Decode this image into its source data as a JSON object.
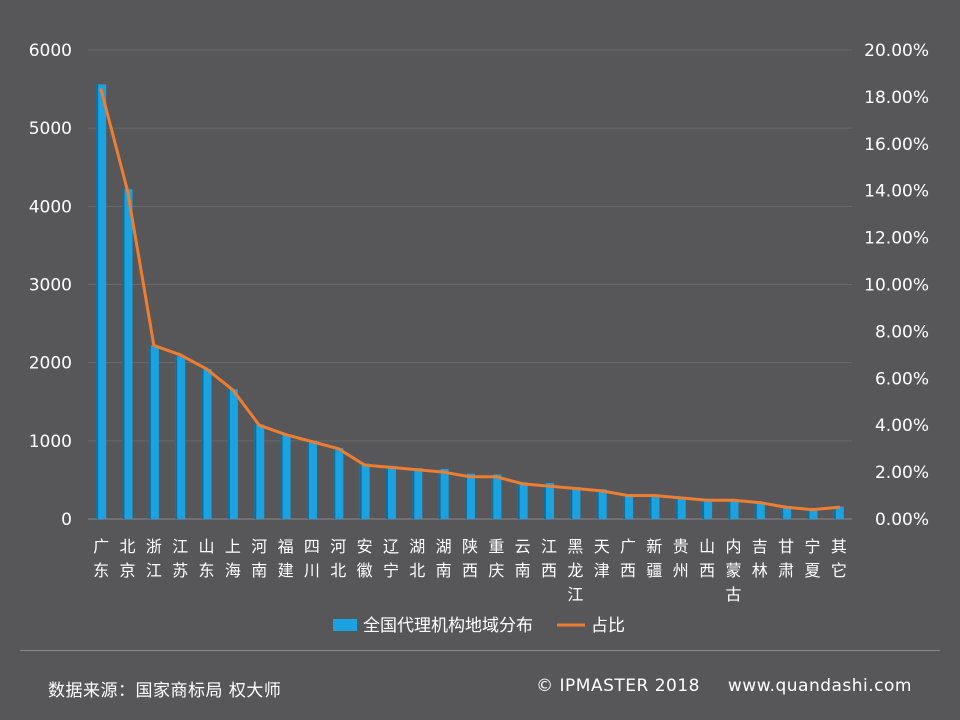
{
  "chart_data": {
    "type": "bar",
    "categories": [
      "广东",
      "北京",
      "浙江",
      "江苏",
      "山东",
      "上海",
      "河南",
      "福建",
      "四川",
      "河北",
      "安徽",
      "辽宁",
      "湖北",
      "湖南",
      "陕西",
      "重庆",
      "云南",
      "江西",
      "黑龙江",
      "天津",
      "广西",
      "新疆",
      "贵州",
      "山西",
      "内蒙古",
      "吉林",
      "甘肃",
      "宁夏",
      "其它"
    ],
    "series": [
      {
        "name": "全国代理机构地域分布",
        "kind": "bar",
        "axis": "left",
        "color": "#1aa3e0",
        "values": [
          5560,
          4220,
          2220,
          2080,
          1920,
          1660,
          1210,
          1080,
          1000,
          910,
          710,
          680,
          650,
          640,
          580,
          570,
          470,
          460,
          410,
          380,
          310,
          300,
          270,
          260,
          240,
          210,
          150,
          110,
          160
        ]
      },
      {
        "name": "占比",
        "kind": "line",
        "axis": "right",
        "color": "#ed7d31",
        "values": [
          18.3,
          14.0,
          7.4,
          7.0,
          6.4,
          5.5,
          4.0,
          3.6,
          3.3,
          3.0,
          2.3,
          2.2,
          2.1,
          2.0,
          1.8,
          1.8,
          1.5,
          1.4,
          1.3,
          1.2,
          1.0,
          1.0,
          0.9,
          0.8,
          0.8,
          0.7,
          0.5,
          0.4,
          0.5
        ]
      }
    ],
    "yaxis_left": {
      "min": 0,
      "max": 6000,
      "ticks": [
        "0",
        "1000",
        "2000",
        "3000",
        "4000",
        "5000",
        "6000"
      ]
    },
    "yaxis_right": {
      "min": 0,
      "max": 20,
      "ticks": [
        "0.00%",
        "2.00%",
        "4.00%",
        "6.00%",
        "8.00%",
        "10.00%",
        "12.00%",
        "14.00%",
        "16.00%",
        "18.00%",
        "20.00%"
      ]
    },
    "grid": true,
    "legend_position": "bottom"
  },
  "footer": {
    "source": "数据来源：国家商标局  权大师",
    "copyright": "© IPMASTER  2018",
    "website": "www.quandashi.com"
  },
  "colors": {
    "background": "#575759",
    "gridline": "#6a6a6c",
    "axis_text": "#ffffff"
  }
}
